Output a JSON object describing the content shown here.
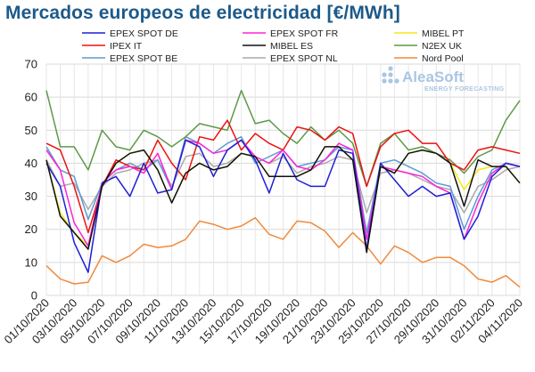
{
  "chart_data": {
    "type": "line",
    "title": "Mercados europeos de electricidad [€/MWh]",
    "xlabel": "",
    "ylabel": "",
    "ylim": [
      0,
      70
    ],
    "yticks": [
      0,
      10,
      20,
      30,
      40,
      50,
      60,
      70
    ],
    "x_tick_labels": [
      "01/10/2020",
      "03/10/2020",
      "05/10/2020",
      "07/10/2020",
      "09/10/2020",
      "11/10/2020",
      "13/10/2020",
      "15/10/2020",
      "17/10/2020",
      "19/10/2020",
      "21/10/2020",
      "23/10/2020",
      "25/10/2020",
      "27/10/2020",
      "29/10/2020",
      "31/10/2020",
      "02/11/2020",
      "04/11/2020"
    ],
    "x_tick_every": 2,
    "grid": true,
    "legend_placement": "top",
    "logo": {
      "name": "AleaSoft",
      "tagline": "ENERGY FORECASTING"
    },
    "series": [
      {
        "name": "EPEX SPOT DE",
        "color": "#1f1fd6",
        "values": [
          40,
          33,
          16,
          7,
          34,
          36,
          30,
          40,
          31,
          32,
          47,
          45,
          36,
          44,
          47,
          41,
          31,
          43,
          35,
          33,
          33,
          44,
          43,
          14,
          40,
          35,
          30,
          33,
          30,
          31,
          17,
          24,
          36,
          40,
          39
        ]
      },
      {
        "name": "EPEX SPOT FR",
        "color": "#ff22d8",
        "values": [
          44,
          38,
          22,
          15,
          34,
          38,
          39,
          37,
          43,
          32,
          47,
          46,
          43,
          44,
          47,
          42,
          40,
          44,
          39,
          38,
          41,
          46,
          44,
          17,
          39,
          38,
          37,
          36,
          33,
          31,
          17,
          28,
          37,
          40,
          39
        ]
      },
      {
        "name": "MIBEL PT",
        "color": "#f2ea16",
        "values": [
          41,
          25,
          19,
          15,
          33,
          40,
          43,
          44,
          38,
          28,
          37,
          40,
          38,
          39,
          43,
          42,
          36,
          36,
          36,
          38,
          45,
          45,
          41,
          14,
          39,
          37,
          43,
          44,
          43,
          40,
          32,
          38,
          39,
          39,
          34
        ]
      },
      {
        "name": "IPEX IT",
        "color": "#ee1111",
        "values": [
          46,
          44,
          33,
          19,
          33,
          41,
          39,
          38,
          47,
          40,
          35,
          48,
          47,
          53,
          44,
          49,
          46,
          44,
          51,
          50,
          47,
          51,
          49,
          33,
          45,
          49,
          50,
          46,
          46,
          40,
          38,
          44,
          45,
          44,
          43
        ]
      },
      {
        "name": "MIBEL ES",
        "color": "#111111",
        "values": [
          41,
          24,
          19,
          14,
          33,
          40,
          43,
          44,
          38,
          28,
          37,
          40,
          38,
          39,
          43,
          42,
          36,
          36,
          36,
          38,
          45,
          45,
          41,
          13,
          39,
          37,
          43,
          44,
          43,
          40,
          27,
          41,
          39,
          39,
          34
        ]
      },
      {
        "name": "N2EX UK",
        "color": "#5c9a47",
        "values": [
          62,
          45,
          45,
          38,
          50,
          45,
          44,
          50,
          48,
          45,
          48,
          52,
          51,
          50,
          62,
          52,
          53,
          49,
          46,
          51,
          47,
          50,
          46,
          33,
          46,
          49,
          44,
          45,
          43,
          41,
          37,
          42,
          44,
          53,
          59
        ]
      },
      {
        "name": "EPEX SPOT BE",
        "color": "#5b9bd5",
        "values": [
          45,
          38,
          36,
          23,
          34,
          38,
          40,
          38,
          41,
          32,
          48,
          46,
          43,
          46,
          48,
          40,
          42,
          44,
          39,
          40,
          41,
          45,
          44,
          19,
          40,
          41,
          39,
          37,
          34,
          33,
          20,
          30,
          38,
          40,
          39
        ]
      },
      {
        "name": "EPEX SPOT NL",
        "color": "#aaaaaa",
        "values": [
          41,
          33,
          34,
          26,
          33,
          37,
          38,
          40,
          41,
          33,
          42,
          43,
          39,
          40,
          43,
          42,
          40,
          42,
          37,
          39,
          40,
          42,
          41,
          25,
          37,
          38,
          37,
          35,
          33,
          32,
          25,
          33,
          35,
          38,
          39
        ]
      },
      {
        "name": "Nord Pool",
        "color": "#f08a3c",
        "values": [
          9,
          5,
          3.5,
          4,
          12,
          10,
          12,
          15.5,
          14.5,
          15,
          17,
          22.5,
          21.5,
          20,
          21,
          23.5,
          18.5,
          17,
          22.5,
          22,
          19.5,
          14.5,
          19,
          15,
          9.5,
          15,
          13,
          10,
          11.5,
          11.5,
          9,
          5,
          4,
          6,
          2.5
        ]
      }
    ]
  }
}
